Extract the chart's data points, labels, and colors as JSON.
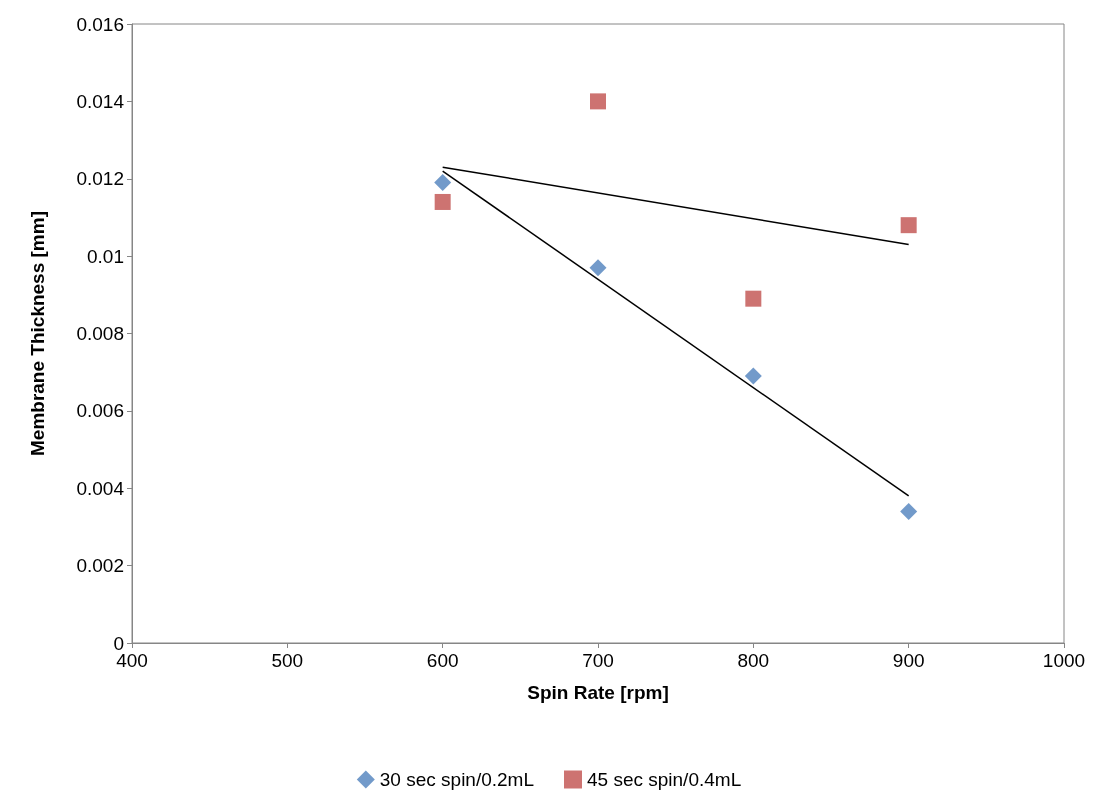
{
  "chart_data": {
    "type": "scatter",
    "xlabel": "Spin Rate [rpm]",
    "ylabel": "Membrane Thickness [mm]",
    "xlim": [
      400,
      1000
    ],
    "xticks": [
      400,
      500,
      600,
      700,
      800,
      900,
      1000
    ],
    "ylim": [
      0,
      0.016
    ],
    "yticks": [
      0,
      0.002,
      0.004,
      0.006,
      0.008,
      0.01,
      0.012,
      0.014,
      0.016
    ],
    "grid": false,
    "legend": "bottom",
    "series": [
      {
        "name": "30 sec spin/0.2mL",
        "color": "#4f81bd",
        "marker": "diamond",
        "x": [
          600,
          700,
          800,
          900
        ],
        "values": [
          0.0119,
          0.0097,
          0.0069,
          0.0034
        ]
      },
      {
        "name": "45 sec spin/0.4mL",
        "color": "#c0504d",
        "marker": "square",
        "x": [
          600,
          700,
          800,
          900
        ],
        "values": [
          0.0114,
          0.014,
          0.0089,
          0.0108
        ]
      },
      {
        "type": "line",
        "color": "#000000",
        "marker": "none",
        "x": [
          600,
          900
        ],
        "values": [
          0.0122,
          0.0038
        ]
      },
      {
        "type": "line",
        "color": "#000000",
        "marker": "none",
        "x": [
          600,
          900
        ],
        "values": [
          0.0123,
          0.0103
        ]
      }
    ]
  }
}
